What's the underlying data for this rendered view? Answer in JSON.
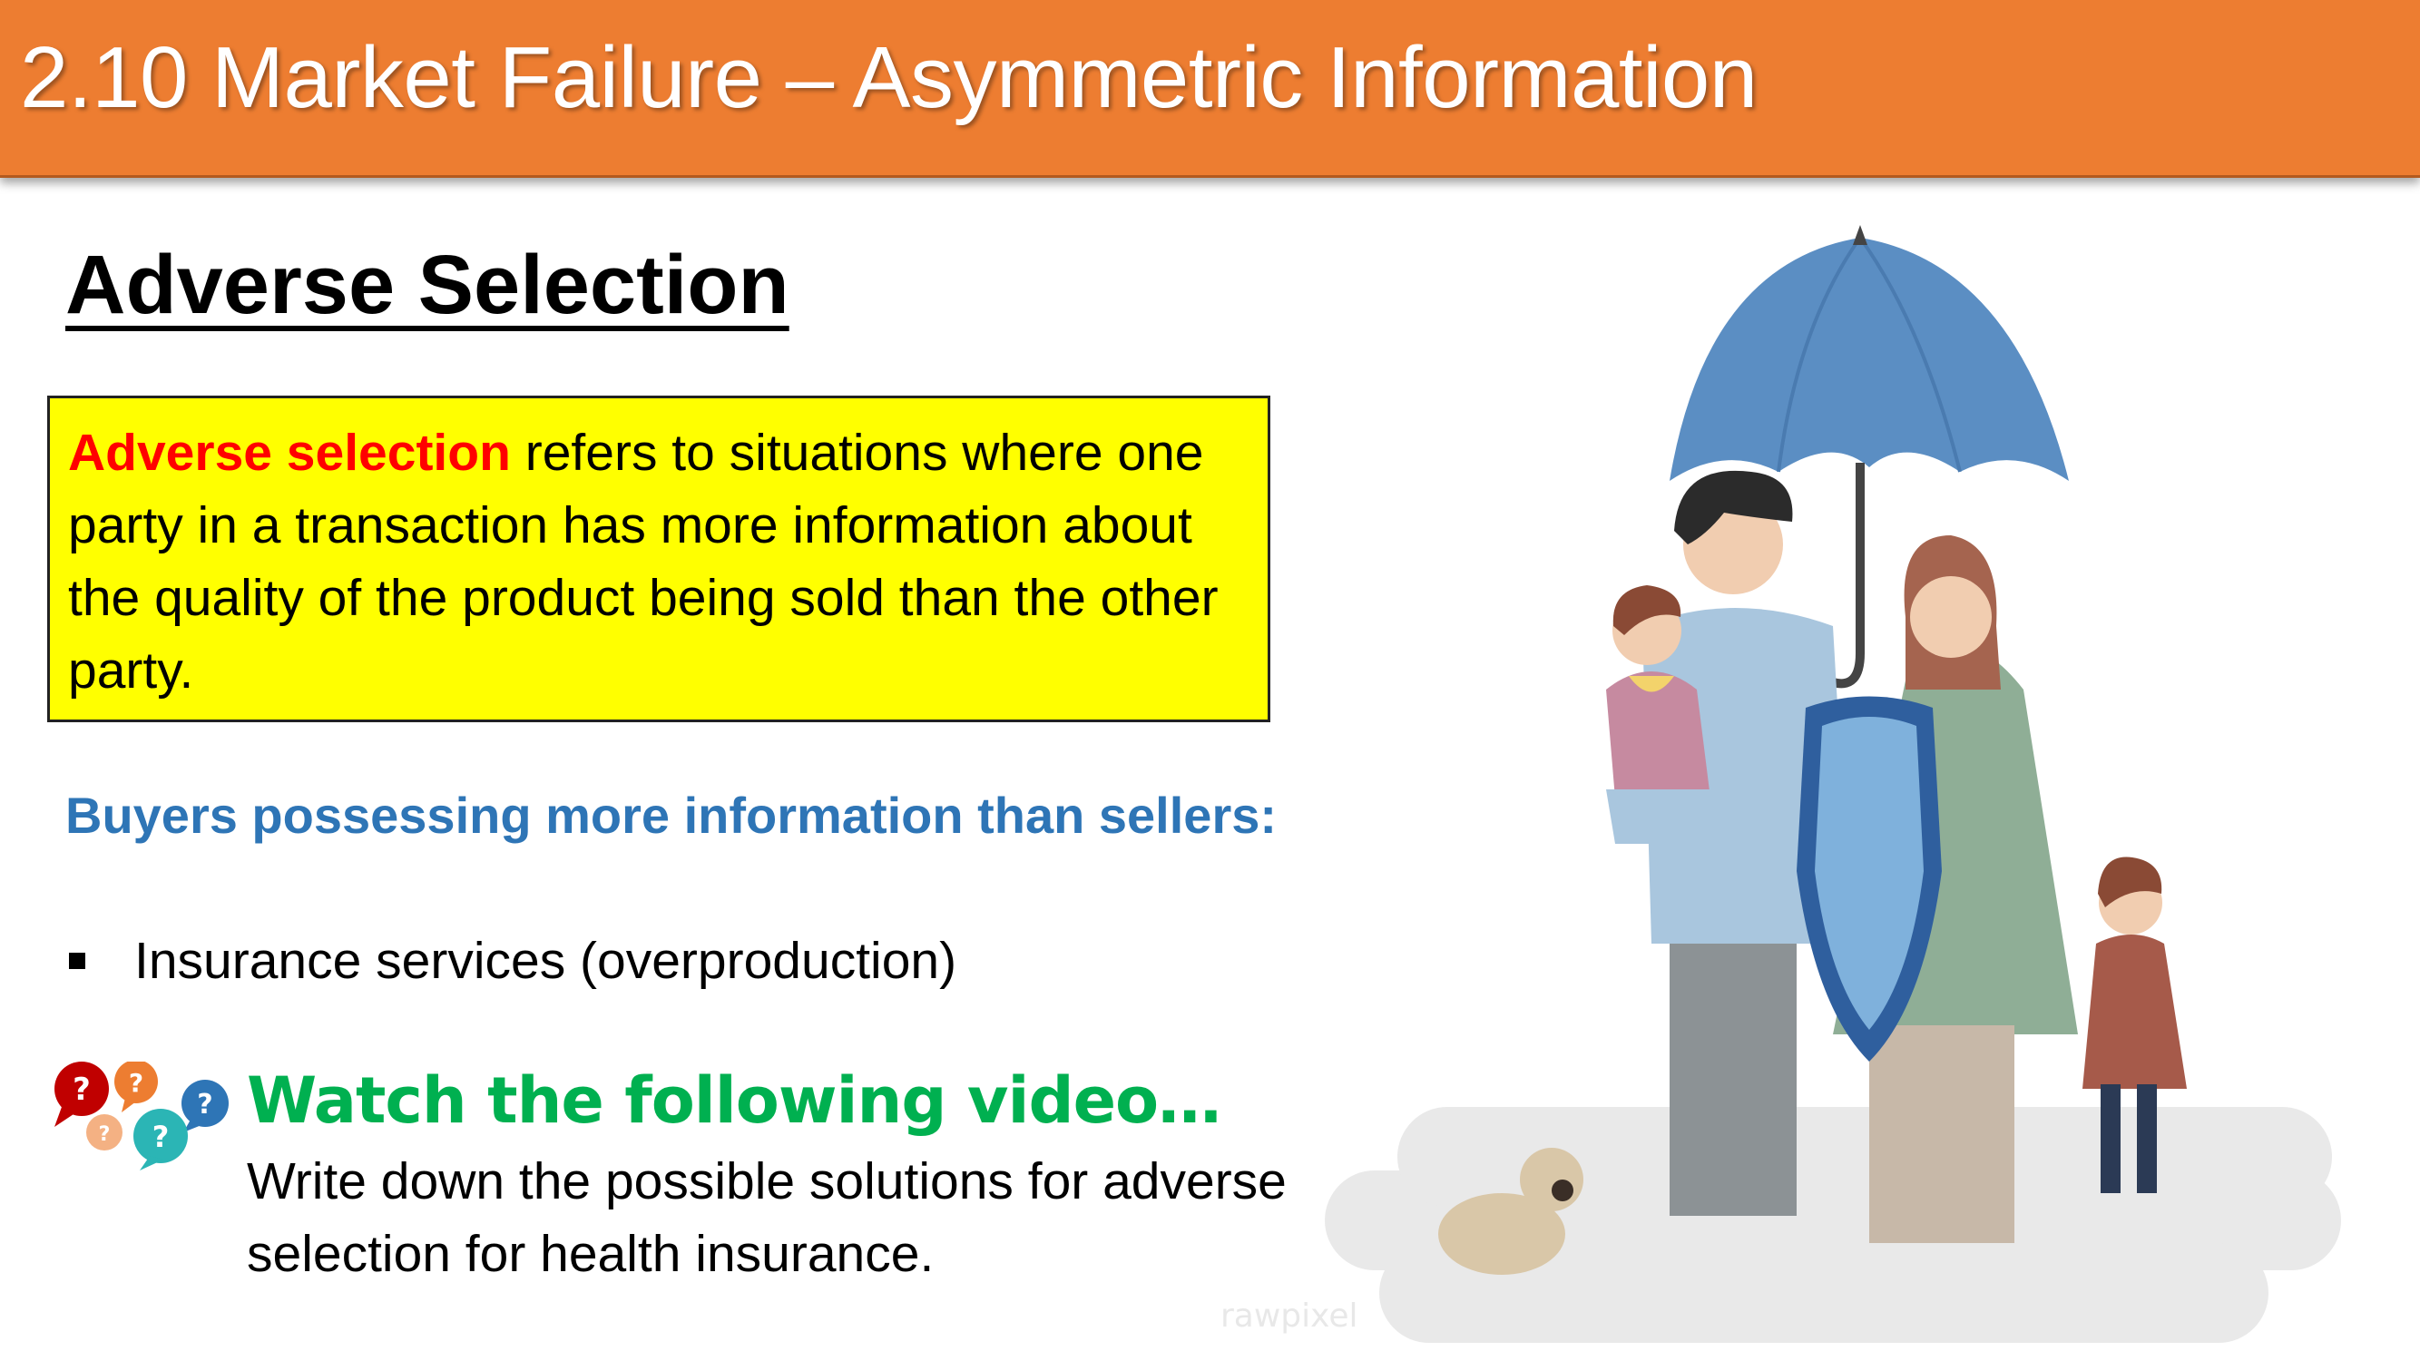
{
  "header": {
    "title": "2.10 Market Failure – Asymmetric Information"
  },
  "section": {
    "heading": "Adverse Selection"
  },
  "definition": {
    "term": "Adverse selection",
    "text": " refers to situations where one party in a transaction has more information about the quality of the product being sold than the other party."
  },
  "subheading": "Buyers possessing more information than sellers:",
  "bullets": [
    "Insurance services (overproduction)"
  ],
  "video": {
    "title": "Watch the following video…",
    "instruction": "Write down the possible solutions for adverse selection for health insurance."
  },
  "watermark": "rawpixel",
  "colors": {
    "header_bg": "#ed7d31",
    "definition_bg": "#ffff00",
    "term_color": "#ff0000",
    "subheading_color": "#2e75b6",
    "video_title_color": "#00b050"
  },
  "icons": [
    "question-bubbles-icon",
    "family-umbrella-illustration"
  ]
}
